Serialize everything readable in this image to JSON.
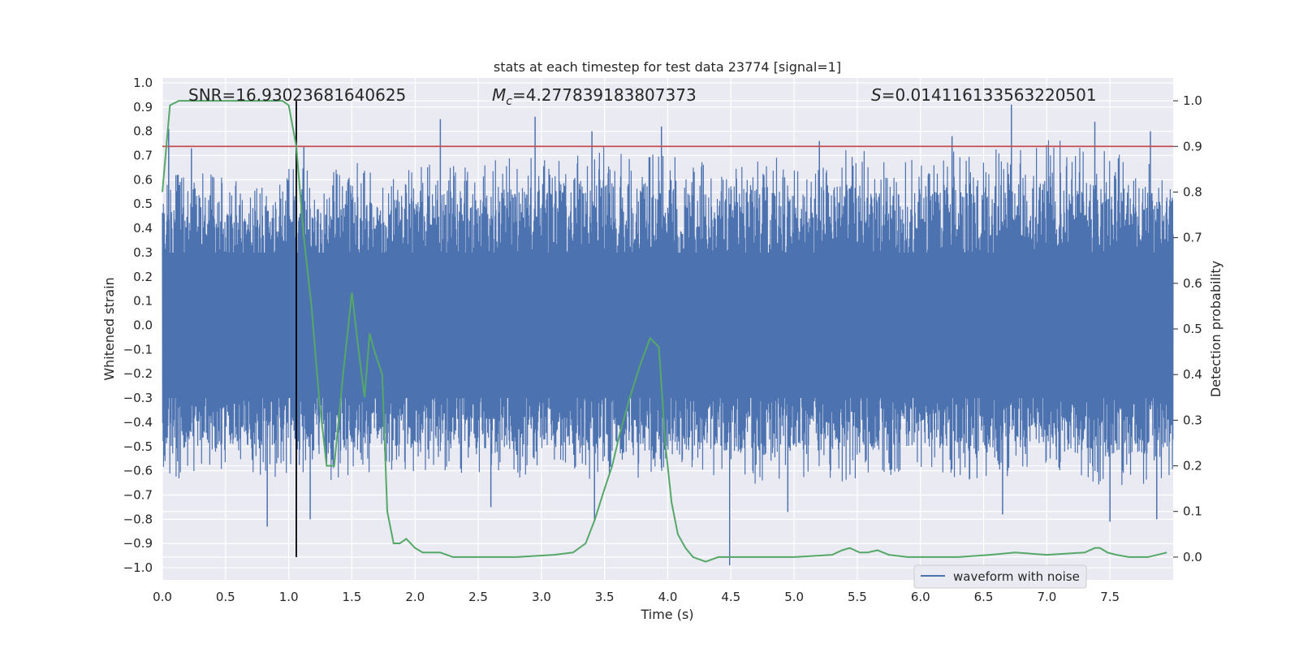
{
  "chart_data": {
    "type": "line",
    "title": "stats at each timestep for test data 23774 [signal=1]",
    "xlabel": "Time (s)",
    "ylabel_left": "Whitened strain",
    "ylabel_right": "Detection probability",
    "xlim": [
      0.0,
      8.0
    ],
    "ylim_left": [
      -1.05,
      1.02
    ],
    "ylim_right": [
      -0.05,
      1.05
    ],
    "xticks": [
      "0.0",
      "0.5",
      "1.0",
      "1.5",
      "2.0",
      "2.5",
      "3.0",
      "3.5",
      "4.0",
      "4.5",
      "5.0",
      "5.5",
      "6.0",
      "6.5",
      "7.0",
      "7.5"
    ],
    "yticks_left": [
      "1.0",
      "0.9",
      "0.8",
      "0.7",
      "0.6",
      "0.5",
      "0.4",
      "0.3",
      "0.2",
      "0.1",
      "0.0",
      "−0.1",
      "−0.2",
      "−0.3",
      "−0.4",
      "−0.5",
      "−0.6",
      "−0.7",
      "−0.8",
      "−0.9",
      "−1.0"
    ],
    "yticks_right": [
      "1.0",
      "0.9",
      "0.8",
      "0.7",
      "0.6",
      "0.5",
      "0.4",
      "0.3",
      "0.2",
      "0.1",
      "0.0"
    ],
    "annotations": {
      "snr": "SNR=16.93023681640625",
      "mc_symbol": "M",
      "mc_sub": "c",
      "mc_value": "=4.277839183807373",
      "s_symbol": "S",
      "s_value": "=0.014116133563220501"
    },
    "threshold_right": 0.9,
    "marker_time": 1.06,
    "grid": true,
    "legend": {
      "position": "lower-right",
      "entries": [
        "waveform with noise"
      ]
    },
    "colors": {
      "waveform": "#4c72b0",
      "probability": "#55a868",
      "threshold": "#c44e52",
      "marker": "#000000",
      "background": "#eaeaf2",
      "grid": "#ffffff"
    },
    "series": [
      {
        "name": "waveform with noise",
        "axis": "left",
        "envelope": {
          "t": [
            0.0,
            0.25,
            0.5,
            0.75,
            1.0,
            1.25,
            1.5,
            1.75,
            2.0,
            2.25,
            2.5,
            2.75,
            3.0,
            3.25,
            3.5,
            3.75,
            4.0,
            4.25,
            4.5,
            4.75,
            5.0,
            5.25,
            5.5,
            5.75,
            6.0,
            6.25,
            6.5,
            6.75,
            7.0,
            7.25,
            7.5,
            7.75,
            8.0
          ],
          "upper": [
            0.6,
            0.65,
            0.62,
            0.58,
            0.66,
            0.65,
            0.68,
            0.62,
            0.65,
            0.7,
            0.66,
            0.72,
            0.7,
            0.7,
            0.74,
            0.72,
            0.76,
            0.7,
            0.66,
            0.72,
            0.68,
            0.7,
            0.78,
            0.66,
            0.7,
            0.72,
            0.74,
            0.72,
            0.8,
            0.74,
            0.72,
            0.7,
            0.68
          ],
          "lower": [
            -0.62,
            -0.66,
            -0.6,
            -0.64,
            -0.62,
            -0.68,
            -0.62,
            -0.6,
            -0.62,
            -0.6,
            -0.62,
            -0.64,
            -0.62,
            -0.6,
            -0.7,
            -0.66,
            -0.62,
            -0.6,
            -0.64,
            -0.66,
            -0.62,
            -0.64,
            -0.66,
            -0.62,
            -0.6,
            -0.64,
            -0.66,
            -0.62,
            -0.6,
            -0.64,
            -0.68,
            -0.66,
            -0.62
          ]
        },
        "spikes_positive": [
          [
            0.05,
            0.81
          ],
          [
            0.23,
            0.73
          ],
          [
            1.12,
            0.74
          ],
          [
            2.2,
            0.85
          ],
          [
            2.95,
            0.86
          ],
          [
            3.4,
            0.8
          ],
          [
            3.95,
            0.82
          ],
          [
            5.2,
            0.76
          ],
          [
            6.25,
            0.78
          ],
          [
            6.72,
            0.91
          ],
          [
            7.38,
            0.84
          ],
          [
            7.82,
            0.8
          ]
        ],
        "spikes_negative": [
          [
            0.83,
            -0.83
          ],
          [
            1.17,
            -0.8
          ],
          [
            2.6,
            -0.75
          ],
          [
            3.42,
            -0.81
          ],
          [
            4.49,
            -0.99
          ],
          [
            4.95,
            -0.77
          ],
          [
            6.65,
            -0.78
          ],
          [
            7.5,
            -0.81
          ],
          [
            7.87,
            -0.8
          ]
        ]
      },
      {
        "name": "",
        "axis": "right",
        "x": [
          0.0,
          0.06,
          0.13,
          0.2,
          0.4,
          0.6,
          0.8,
          0.95,
          1.0,
          1.06,
          1.12,
          1.18,
          1.24,
          1.3,
          1.36,
          1.43,
          1.5,
          1.55,
          1.6,
          1.64,
          1.68,
          1.74,
          1.78,
          1.83,
          1.88,
          1.93,
          2.0,
          2.06,
          2.12,
          2.2,
          2.3,
          2.5,
          2.8,
          3.1,
          3.25,
          3.35,
          3.42,
          3.5,
          3.56,
          3.62,
          3.7,
          3.78,
          3.86,
          3.93,
          3.98,
          4.03,
          4.08,
          4.14,
          4.2,
          4.3,
          4.4,
          4.6,
          5.0,
          5.3,
          5.38,
          5.44,
          5.52,
          5.58,
          5.66,
          5.75,
          5.9,
          6.3,
          6.55,
          6.75,
          7.0,
          7.3,
          7.38,
          7.42,
          7.48,
          7.55,
          7.65,
          7.8,
          7.95
        ],
        "y": [
          0.8,
          0.99,
          1.0,
          1.0,
          1.0,
          1.0,
          1.0,
          1.0,
          0.99,
          0.9,
          0.7,
          0.55,
          0.35,
          0.2,
          0.2,
          0.4,
          0.58,
          0.46,
          0.35,
          0.49,
          0.45,
          0.4,
          0.1,
          0.03,
          0.03,
          0.04,
          0.02,
          0.01,
          0.01,
          0.01,
          0.0,
          0.0,
          0.0,
          0.005,
          0.01,
          0.03,
          0.08,
          0.15,
          0.2,
          0.27,
          0.35,
          0.42,
          0.48,
          0.46,
          0.25,
          0.12,
          0.05,
          0.02,
          0.0,
          -0.01,
          0.0,
          0.0,
          0.0,
          0.005,
          0.015,
          0.02,
          0.01,
          0.01,
          0.015,
          0.005,
          0.0,
          0.0,
          0.005,
          0.01,
          0.005,
          0.01,
          0.02,
          0.02,
          0.01,
          0.005,
          0.0,
          0.0,
          0.01
        ]
      }
    ]
  }
}
